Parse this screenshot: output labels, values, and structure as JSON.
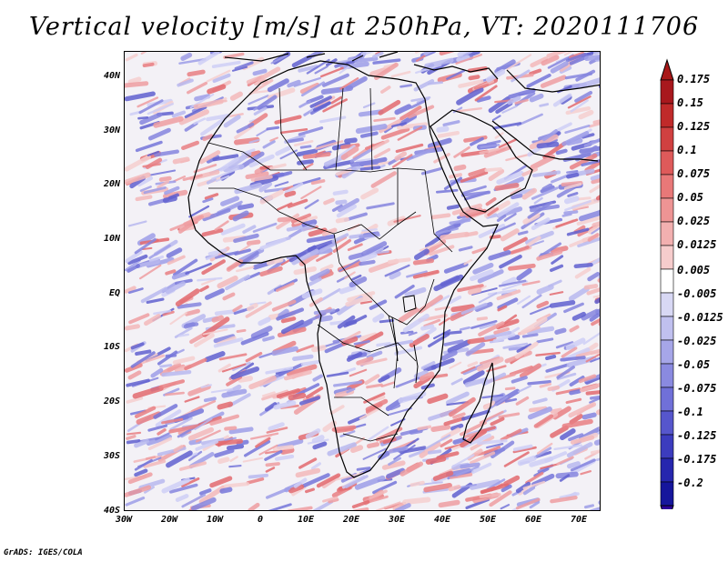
{
  "title": "Vertical velocity [m/s] at 250hPa, VT: 2020111706",
  "variable": "Vertical velocity",
  "units": "m/s",
  "level": "250hPa",
  "valid_time": "2020111706",
  "map": {
    "lon_range": [
      -30,
      75
    ],
    "lat_range": [
      -40,
      45
    ],
    "lat_ticks": [
      "40N",
      "30N",
      "20N",
      "10N",
      "EQ",
      "10S",
      "20S",
      "30S",
      "40S"
    ],
    "lon_ticks": [
      "30W",
      "20W",
      "10W",
      "0",
      "10E",
      "20E",
      "30E",
      "40E",
      "50E",
      "60E",
      "70E"
    ],
    "field_description": "noisy mottled field of red (upward) and blue (downward) vertical velocity over Africa and the Indian Ocean"
  },
  "colorbar": {
    "labels": [
      "0.175",
      "0.15",
      "0.125",
      "0.1",
      "0.075",
      "0.05",
      "0.025",
      "0.0125",
      "0.005",
      "-0.005",
      "-0.0125",
      "-0.025",
      "-0.05",
      "-0.075",
      "-0.1",
      "-0.125",
      "-0.175",
      "-0.2"
    ],
    "colors": [
      "#a8181d",
      "#c02a2a",
      "#d04040",
      "#de5a5a",
      "#e87878",
      "#ee9494",
      "#f2b0b0",
      "#f6cccc",
      "#ffffff",
      "#d8d8f4",
      "#c0c0ef",
      "#a6a6e8",
      "#8a8ae0",
      "#7070d8",
      "#5656cc",
      "#3c3cbe",
      "#2626ae",
      "#16169c",
      "#0c0c8c",
      "#a81818"
    ],
    "top_arrow_color": "#a81818",
    "bottom_arrow_color": "#2c0099"
  },
  "footer": "GrADS: IGES/COLA"
}
